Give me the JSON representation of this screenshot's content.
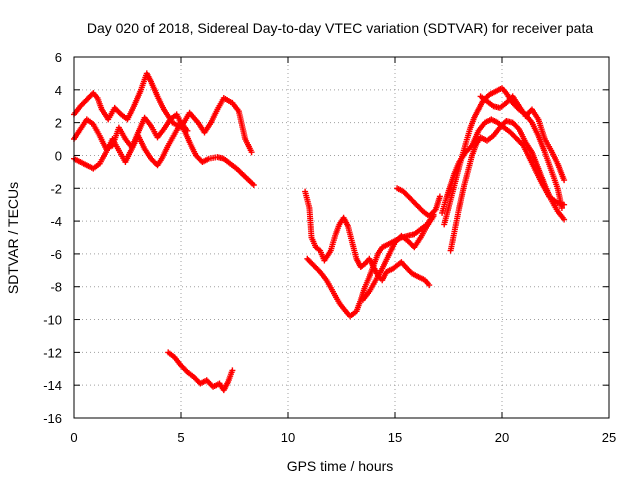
{
  "chart_data": {
    "type": "scatter",
    "title": "Day 020 of 2018, Sidereal Day-to-day VTEC variation (SDTVAR) for receiver pata",
    "xlabel": "GPS time / hours",
    "ylabel": "SDTVAR / TECUs",
    "xlim": [
      0,
      25
    ],
    "ylim": [
      -16,
      6
    ],
    "xticks": [
      0,
      5,
      10,
      15,
      20,
      25
    ],
    "yticks": [
      -16,
      -14,
      -12,
      -10,
      -8,
      -6,
      -4,
      -2,
      0,
      2,
      4,
      6
    ],
    "grid": true,
    "marker": "+",
    "marker_color": "#ff0000",
    "series_traces": [
      [
        [
          0.0,
          2.5
        ],
        [
          0.3,
          3.0
        ],
        [
          0.6,
          3.4
        ],
        [
          0.9,
          3.8
        ],
        [
          1.1,
          3.5
        ],
        [
          1.3,
          2.8
        ],
        [
          1.6,
          2.2
        ],
        [
          1.9,
          2.9
        ],
        [
          2.2,
          2.5
        ],
        [
          2.5,
          2.2
        ],
        [
          2.8,
          3.0
        ],
        [
          3.1,
          3.9
        ],
        [
          3.4,
          5.0
        ],
        [
          3.6,
          4.5
        ],
        [
          3.9,
          3.6
        ],
        [
          4.2,
          2.8
        ],
        [
          4.6,
          2.0
        ],
        [
          5.0,
          1.7
        ],
        [
          5.4,
          2.6
        ],
        [
          5.8,
          2.0
        ],
        [
          6.1,
          1.4
        ],
        [
          6.4,
          2.0
        ],
        [
          6.7,
          2.8
        ],
        [
          7.0,
          3.5
        ],
        [
          7.4,
          3.2
        ],
        [
          7.7,
          2.7
        ],
        [
          8.0,
          1.0
        ],
        [
          8.3,
          0.2
        ]
      ],
      [
        [
          0.0,
          1.0
        ],
        [
          0.3,
          1.6
        ],
        [
          0.6,
          2.2
        ],
        [
          0.9,
          1.9
        ],
        [
          1.2,
          1.2
        ],
        [
          1.5,
          0.4
        ],
        [
          1.8,
          0.6
        ],
        [
          2.1,
          1.7
        ],
        [
          2.4,
          1.0
        ],
        [
          2.7,
          0.5
        ],
        [
          3.0,
          1.4
        ],
        [
          3.3,
          2.3
        ],
        [
          3.6,
          1.8
        ],
        [
          3.9,
          1.1
        ],
        [
          4.2,
          1.6
        ],
        [
          4.5,
          2.2
        ],
        [
          4.8,
          2.5
        ],
        [
          5.1,
          1.7
        ],
        [
          5.4,
          0.8
        ],
        [
          5.7,
          0.0
        ],
        [
          6.0,
          -0.4
        ],
        [
          6.3,
          -0.2
        ],
        [
          6.7,
          -0.1
        ],
        [
          7.0,
          -0.2
        ],
        [
          7.3,
          -0.5
        ],
        [
          7.6,
          -0.8
        ],
        [
          8.0,
          -1.3
        ],
        [
          8.4,
          -1.8
        ]
      ],
      [
        [
          0.0,
          -0.2
        ],
        [
          0.3,
          -0.4
        ],
        [
          0.6,
          -0.6
        ],
        [
          0.9,
          -0.8
        ],
        [
          1.2,
          -0.5
        ],
        [
          1.5,
          0.2
        ],
        [
          1.8,
          1.0
        ],
        [
          2.1,
          0.3
        ],
        [
          2.4,
          -0.4
        ],
        [
          2.7,
          0.4
        ],
        [
          3.0,
          1.2
        ],
        [
          3.3,
          0.4
        ],
        [
          3.6,
          -0.2
        ],
        [
          3.9,
          -0.6
        ],
        [
          4.1,
          -0.2
        ],
        [
          4.4,
          0.6
        ],
        [
          4.7,
          1.3
        ],
        [
          5.0,
          2.0
        ],
        [
          5.3,
          1.5
        ]
      ],
      [
        [
          4.4,
          -12.0
        ],
        [
          4.7,
          -12.3
        ],
        [
          5.0,
          -12.8
        ],
        [
          5.3,
          -13.2
        ],
        [
          5.6,
          -13.5
        ],
        [
          5.9,
          -13.9
        ],
        [
          6.2,
          -13.7
        ],
        [
          6.5,
          -14.1
        ],
        [
          6.8,
          -13.9
        ],
        [
          7.0,
          -14.3
        ],
        [
          7.2,
          -13.8
        ],
        [
          7.4,
          -13.1
        ]
      ],
      [
        [
          10.8,
          -2.2
        ],
        [
          11.0,
          -3.2
        ],
        [
          11.1,
          -5.0
        ],
        [
          11.3,
          -5.6
        ],
        [
          11.5,
          -5.8
        ],
        [
          11.7,
          -6.4
        ],
        [
          12.0,
          -5.8
        ],
        [
          12.2,
          -4.9
        ],
        [
          12.4,
          -4.2
        ],
        [
          12.6,
          -3.8
        ],
        [
          12.8,
          -4.3
        ],
        [
          13.0,
          -5.3
        ],
        [
          13.2,
          -6.3
        ],
        [
          13.4,
          -6.8
        ],
        [
          13.6,
          -6.6
        ],
        [
          13.8,
          -6.3
        ],
        [
          14.0,
          -6.8
        ],
        [
          14.2,
          -7.3
        ],
        [
          14.4,
          -7.6
        ],
        [
          14.6,
          -7.1
        ],
        [
          14.9,
          -6.9
        ],
        [
          15.1,
          -6.7
        ],
        [
          15.3,
          -6.5
        ],
        [
          15.5,
          -6.8
        ],
        [
          15.8,
          -7.2
        ],
        [
          16.1,
          -7.4
        ],
        [
          16.4,
          -7.6
        ],
        [
          16.6,
          -7.9
        ]
      ],
      [
        [
          10.9,
          -6.3
        ],
        [
          11.2,
          -6.7
        ],
        [
          11.5,
          -7.1
        ],
        [
          11.8,
          -7.6
        ],
        [
          12.1,
          -8.3
        ],
        [
          12.4,
          -9.0
        ],
        [
          12.7,
          -9.5
        ],
        [
          12.9,
          -9.8
        ],
        [
          13.2,
          -9.5
        ],
        [
          13.4,
          -8.8
        ],
        [
          13.6,
          -8.0
        ],
        [
          13.8,
          -7.4
        ],
        [
          14.0,
          -6.7
        ],
        [
          14.2,
          -6.0
        ],
        [
          14.4,
          -5.6
        ],
        [
          14.7,
          -5.4
        ],
        [
          15.0,
          -5.2
        ],
        [
          15.3,
          -5.0
        ],
        [
          15.6,
          -4.9
        ],
        [
          15.9,
          -4.8
        ],
        [
          16.2,
          -4.5
        ],
        [
          16.5,
          -4.2
        ],
        [
          16.8,
          -3.6
        ]
      ],
      [
        [
          13.5,
          -8.8
        ],
        [
          13.8,
          -8.3
        ],
        [
          14.1,
          -7.6
        ],
        [
          14.4,
          -6.9
        ],
        [
          14.7,
          -6.1
        ],
        [
          15.0,
          -5.3
        ],
        [
          15.3,
          -4.9
        ],
        [
          15.6,
          -5.2
        ],
        [
          15.9,
          -5.6
        ],
        [
          16.2,
          -5.0
        ],
        [
          16.5,
          -4.3
        ],
        [
          16.8,
          -3.7
        ]
      ],
      [
        [
          15.1,
          -2.0
        ],
        [
          15.4,
          -2.2
        ],
        [
          15.7,
          -2.6
        ],
        [
          16.0,
          -3.0
        ],
        [
          16.3,
          -3.4
        ],
        [
          16.6,
          -3.7
        ],
        [
          16.9,
          -3.3
        ],
        [
          17.1,
          -2.5
        ]
      ],
      [
        [
          17.3,
          -4.2
        ],
        [
          17.5,
          -3.2
        ],
        [
          17.7,
          -2.2
        ],
        [
          17.9,
          -1.2
        ],
        [
          18.1,
          -0.2
        ],
        [
          18.3,
          0.7
        ],
        [
          18.5,
          1.6
        ],
        [
          18.7,
          2.3
        ],
        [
          18.9,
          2.8
        ],
        [
          19.1,
          3.3
        ],
        [
          19.4,
          3.7
        ],
        [
          19.7,
          3.9
        ],
        [
          20.0,
          4.1
        ],
        [
          20.2,
          3.8
        ],
        [
          20.5,
          3.2
        ],
        [
          20.8,
          2.8
        ],
        [
          21.1,
          2.5
        ],
        [
          21.4,
          2.0
        ],
        [
          21.7,
          1.2
        ],
        [
          22.0,
          0.2
        ],
        [
          22.3,
          -0.9
        ],
        [
          22.6,
          -2.0
        ],
        [
          22.8,
          -3.2
        ]
      ],
      [
        [
          17.6,
          -5.8
        ],
        [
          17.8,
          -4.5
        ],
        [
          18.0,
          -3.2
        ],
        [
          18.2,
          -2.0
        ],
        [
          18.4,
          -1.0
        ],
        [
          18.6,
          0.0
        ],
        [
          18.8,
          0.7
        ],
        [
          19.0,
          1.1
        ],
        [
          19.3,
          0.9
        ],
        [
          19.6,
          1.2
        ],
        [
          19.9,
          1.7
        ],
        [
          20.2,
          2.1
        ],
        [
          20.5,
          2.0
        ],
        [
          20.8,
          1.6
        ],
        [
          21.1,
          0.8
        ],
        [
          21.4,
          0.2
        ],
        [
          21.7,
          -0.8
        ],
        [
          22.0,
          -1.8
        ],
        [
          22.3,
          -2.7
        ],
        [
          22.6,
          -3.4
        ],
        [
          22.9,
          -3.9
        ]
      ],
      [
        [
          17.2,
          -3.5
        ],
        [
          17.4,
          -2.6
        ],
        [
          17.6,
          -1.8
        ],
        [
          17.8,
          -1.0
        ],
        [
          18.0,
          -0.4
        ],
        [
          18.3,
          0.2
        ],
        [
          18.6,
          0.6
        ],
        [
          18.9,
          1.5
        ],
        [
          19.2,
          2.0
        ],
        [
          19.5,
          2.2
        ],
        [
          19.8,
          2.0
        ],
        [
          20.1,
          1.7
        ],
        [
          20.4,
          1.4
        ],
        [
          20.7,
          1.0
        ],
        [
          21.0,
          0.6
        ],
        [
          21.3,
          -0.2
        ],
        [
          21.6,
          -1.0
        ],
        [
          21.9,
          -1.8
        ],
        [
          22.2,
          -2.5
        ],
        [
          22.6,
          -2.9
        ],
        [
          22.9,
          -3.0
        ]
      ],
      [
        [
          19.0,
          3.6
        ],
        [
          19.3,
          3.3
        ],
        [
          19.6,
          3.0
        ],
        [
          19.9,
          2.9
        ],
        [
          20.2,
          3.2
        ],
        [
          20.5,
          3.6
        ],
        [
          20.8,
          3.0
        ],
        [
          21.1,
          2.4
        ],
        [
          21.4,
          2.8
        ],
        [
          21.7,
          2.2
        ],
        [
          22.0,
          1.0
        ],
        [
          22.3,
          0.3
        ],
        [
          22.6,
          -0.5
        ],
        [
          22.9,
          -1.5
        ]
      ]
    ]
  }
}
